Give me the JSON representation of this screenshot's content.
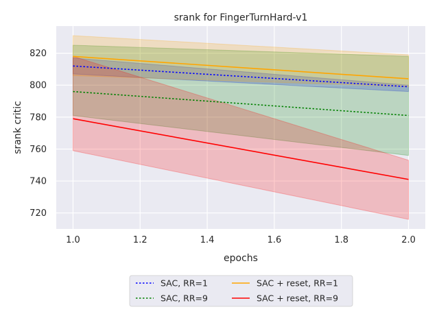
{
  "chart_data": {
    "type": "line",
    "title": "srank for FingerTurnHard-v1",
    "xlabel": "epochs",
    "ylabel": "srank critic",
    "xlim": [
      0.95,
      2.05
    ],
    "ylim": [
      710,
      837
    ],
    "xticks": [
      "1.0",
      "1.2",
      "1.4",
      "1.6",
      "1.8",
      "2.0"
    ],
    "yticks": [
      "720",
      "740",
      "760",
      "780",
      "800",
      "820"
    ],
    "grid": true,
    "background": "#eaeaf2",
    "legend_position": "bottom-center",
    "x": [
      1.0,
      2.0
    ],
    "series": [
      {
        "name": "SAC, RR=1",
        "color": "#0000ff",
        "dash": "dotted",
        "values": [
          812,
          799
        ],
        "band": [
          [
            807,
            817
          ],
          [
            796,
            800
          ]
        ]
      },
      {
        "name": "SAC, RR=9",
        "color": "#008000",
        "dash": "dotted",
        "values": [
          796,
          781
        ],
        "band": [
          [
            781,
            825
          ],
          [
            756,
            818
          ]
        ]
      },
      {
        "name": "SAC + reset, RR=1",
        "color": "#ffa500",
        "dash": "solid",
        "values": [
          818,
          804
        ],
        "band": [
          [
            806,
            831
          ],
          [
            799,
            819
          ]
        ]
      },
      {
        "name": "SAC + reset, RR=9",
        "color": "#ff0000",
        "dash": "solid",
        "values": [
          779,
          741
        ],
        "band": [
          [
            759,
            818
          ],
          [
            716,
            753
          ]
        ]
      }
    ]
  }
}
